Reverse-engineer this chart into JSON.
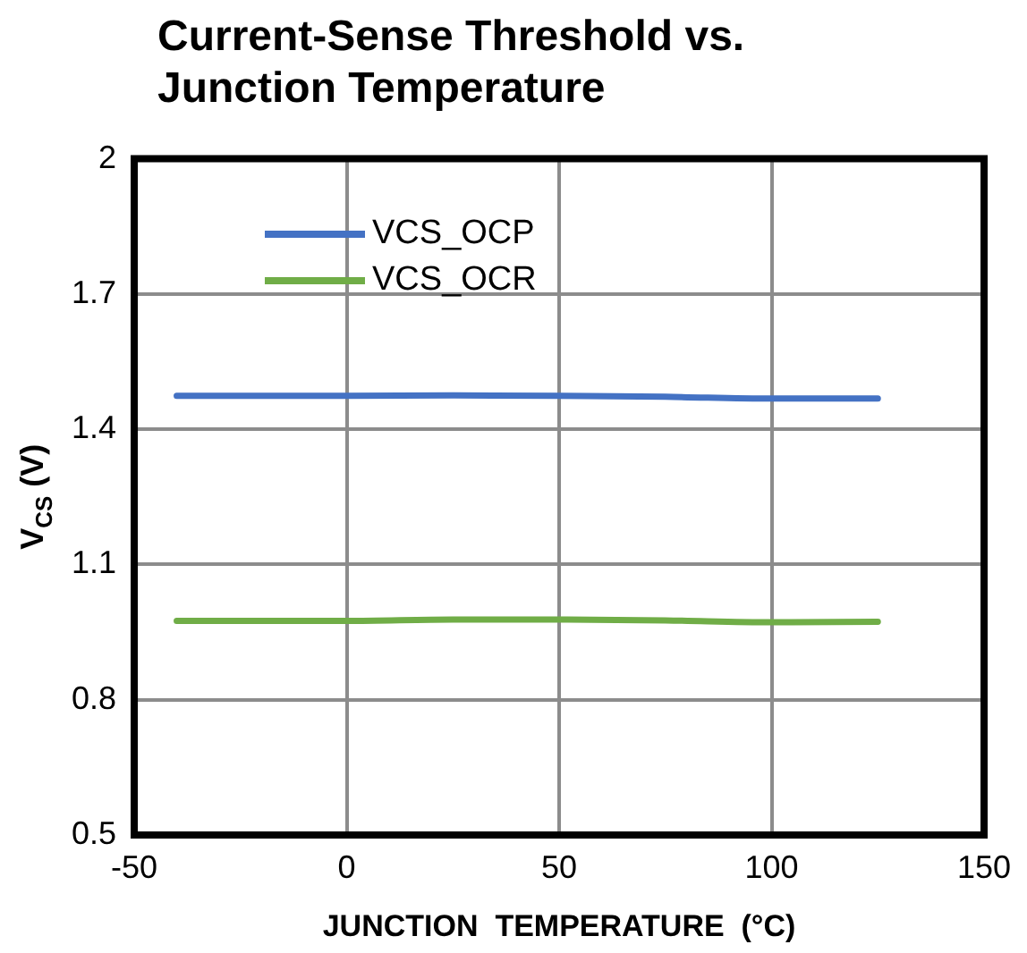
{
  "chart_data": {
    "type": "line",
    "title": "Current-Sense Threshold vs. Junction Temperature",
    "xlabel": "JUNCTION  TEMPERATURE  (°C)",
    "ylabel": "V$_{CS}$ (V)",
    "x": [
      -40,
      0,
      25,
      50,
      75,
      100,
      125
    ],
    "series": [
      {
        "name": "VCS_OCP",
        "color": "#4472c4",
        "values": [
          1.474,
          1.474,
          1.475,
          1.474,
          1.472,
          1.468,
          1.468
        ]
      },
      {
        "name": "VCS_OCR",
        "color": "#70ad47",
        "values": [
          0.975,
          0.975,
          0.978,
          0.978,
          0.976,
          0.972,
          0.973
        ]
      }
    ],
    "xlim": [
      -50,
      150
    ],
    "xticks": [
      -50,
      0,
      50,
      100,
      150
    ],
    "ylim": [
      0.5,
      2
    ],
    "yticks": [
      0.5,
      0.8,
      1.1,
      1.4,
      1.7,
      2
    ],
    "grid": true,
    "legend": "top left",
    "marker": "none",
    "line_style": "solid"
  }
}
